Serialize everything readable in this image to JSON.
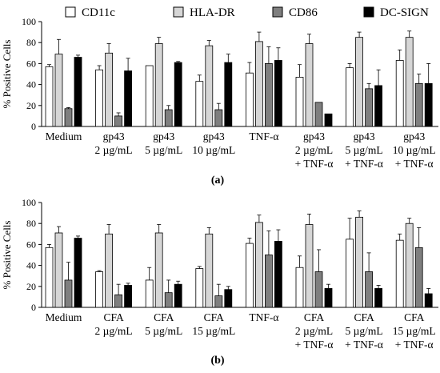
{
  "legend": [
    {
      "label": "CD11c",
      "color": "#ffffff"
    },
    {
      "label": "HLA-DR",
      "color": "#d6d6d6"
    },
    {
      "label": "CD86",
      "color": "#7f7f7f"
    },
    {
      "label": "DC-SIGN",
      "color": "#000000"
    }
  ],
  "chart_data": [
    {
      "type": "bar",
      "panel_label": "(a)",
      "ylabel": "% Positive Cells",
      "ylim": [
        0,
        100
      ],
      "yticks": [
        0,
        20,
        40,
        60,
        80,
        100
      ],
      "categories": [
        {
          "lines": [
            "Medium"
          ]
        },
        {
          "lines": [
            "gp43",
            "2 µg/mL"
          ]
        },
        {
          "lines": [
            "gp43",
            "5 µg/mL"
          ]
        },
        {
          "lines": [
            "gp43",
            "10 µg/mL"
          ]
        },
        {
          "lines": [
            "TNF-α"
          ]
        },
        {
          "lines": [
            "gp43",
            "2 µg/mL",
            "+ TNF-α"
          ]
        },
        {
          "lines": [
            "gp43",
            "5 µg/mL",
            "+ TNF-α"
          ]
        },
        {
          "lines": [
            "gp43",
            "10 µg/mL",
            "+ TNF-α"
          ]
        }
      ],
      "series": [
        {
          "name": "CD11c",
          "color": "#ffffff",
          "values": [
            57,
            54,
            58,
            43,
            51,
            47,
            56,
            63
          ],
          "errors": [
            2,
            4,
            0,
            6,
            10,
            12,
            4,
            10
          ]
        },
        {
          "name": "HLA-DR",
          "color": "#d6d6d6",
          "values": [
            69,
            70,
            79,
            77,
            81,
            79,
            85,
            85
          ],
          "errors": [
            14,
            9,
            6,
            5,
            9,
            9,
            5,
            6
          ]
        },
        {
          "name": "CD86",
          "color": "#7f7f7f",
          "values": [
            17,
            10,
            16,
            16,
            60,
            23,
            36,
            41
          ],
          "errors": [
            1,
            3,
            4,
            6,
            16,
            0,
            5,
            9
          ]
        },
        {
          "name": "DC-SIGN",
          "color": "#000000",
          "values": [
            66,
            53,
            61,
            61,
            63,
            12,
            39,
            41
          ],
          "errors": [
            2,
            12,
            1,
            8,
            12,
            0,
            15,
            19
          ]
        }
      ]
    },
    {
      "type": "bar",
      "panel_label": "(b)",
      "ylabel": "% Positive Cells",
      "ylim": [
        0,
        100
      ],
      "yticks": [
        0,
        20,
        40,
        60,
        80,
        100
      ],
      "categories": [
        {
          "lines": [
            "Medium"
          ]
        },
        {
          "lines": [
            "CFA",
            "2 µg/mL"
          ]
        },
        {
          "lines": [
            "CFA",
            "5 µg/mL"
          ]
        },
        {
          "lines": [
            "CFA",
            "15 µg/mL"
          ]
        },
        {
          "lines": [
            "TNF-α"
          ]
        },
        {
          "lines": [
            "CFA",
            "2 µg/mL",
            "+ TNF-α"
          ]
        },
        {
          "lines": [
            "CFA",
            "5 µg/mL",
            "+ TNF-α"
          ]
        },
        {
          "lines": [
            "CFA",
            "15 µg/mL",
            "+ TNF-α"
          ]
        }
      ],
      "series": [
        {
          "name": "CD11c",
          "color": "#ffffff",
          "values": [
            57,
            34,
            26,
            37,
            61,
            38,
            65,
            64
          ],
          "errors": [
            3,
            1,
            12,
            2,
            5,
            11,
            20,
            6
          ]
        },
        {
          "name": "HLA-DR",
          "color": "#d6d6d6",
          "values": [
            71,
            70,
            71,
            70,
            81,
            79,
            86,
            80
          ],
          "errors": [
            6,
            9,
            8,
            6,
            7,
            10,
            6,
            5
          ]
        },
        {
          "name": "CD86",
          "color": "#7f7f7f",
          "values": [
            26,
            12,
            14,
            11,
            50,
            34,
            34,
            57
          ],
          "errors": [
            17,
            10,
            12,
            11,
            23,
            21,
            18,
            19
          ]
        },
        {
          "name": "DC-SIGN",
          "color": "#000000",
          "values": [
            66,
            21,
            22,
            17,
            63,
            18,
            18,
            13
          ],
          "errors": [
            2,
            2,
            3,
            3,
            11,
            4,
            3,
            5
          ]
        }
      ]
    }
  ]
}
